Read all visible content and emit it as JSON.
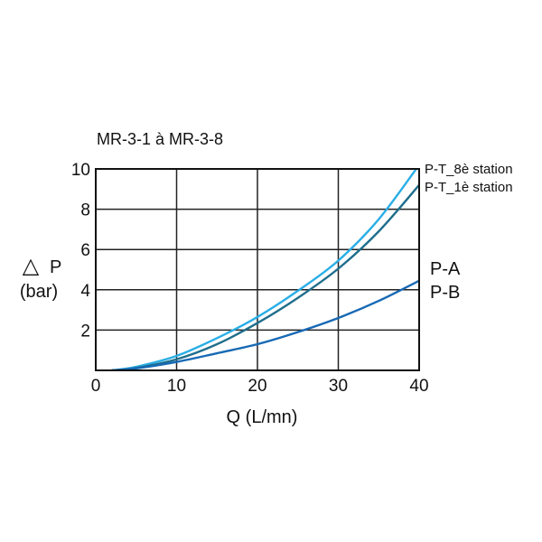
{
  "chart_data": {
    "type": "line",
    "title": "MR-3-1 à MR-3-8",
    "ylabel_symbol": "△",
    "ylabel_main": "P",
    "ylabel_unit": "(bar)",
    "xlabel": "Q (L/mn)",
    "xlim": [
      0,
      40
    ],
    "ylim": [
      0,
      10
    ],
    "x_ticks": [
      "0",
      "10",
      "20",
      "30",
      "40"
    ],
    "y_ticks": [
      "2",
      "4",
      "6",
      "8",
      "10"
    ],
    "grid": true,
    "series": [
      {
        "name": "P-T_8è station",
        "color": "#29aee6",
        "x": [
          2,
          5,
          10,
          15,
          20,
          25,
          30,
          35,
          40
        ],
        "y": [
          0,
          0.18,
          0.72,
          1.6,
          2.65,
          3.95,
          5.45,
          7.5,
          10.2
        ]
      },
      {
        "name": "P-T_1è station",
        "color": "#1f6e8c",
        "x": [
          2,
          5,
          10,
          15,
          20,
          25,
          30,
          35,
          40
        ],
        "y": [
          0,
          0.12,
          0.55,
          1.3,
          2.35,
          3.6,
          5.05,
          6.9,
          9.2
        ]
      },
      {
        "name": "P-A",
        "name2": "P-B",
        "color": "#1769b4",
        "x": [
          2,
          5,
          10,
          15,
          20,
          25,
          30,
          35,
          40
        ],
        "y": [
          0,
          0.1,
          0.42,
          0.85,
          1.3,
          1.9,
          2.6,
          3.45,
          4.45
        ]
      }
    ]
  }
}
